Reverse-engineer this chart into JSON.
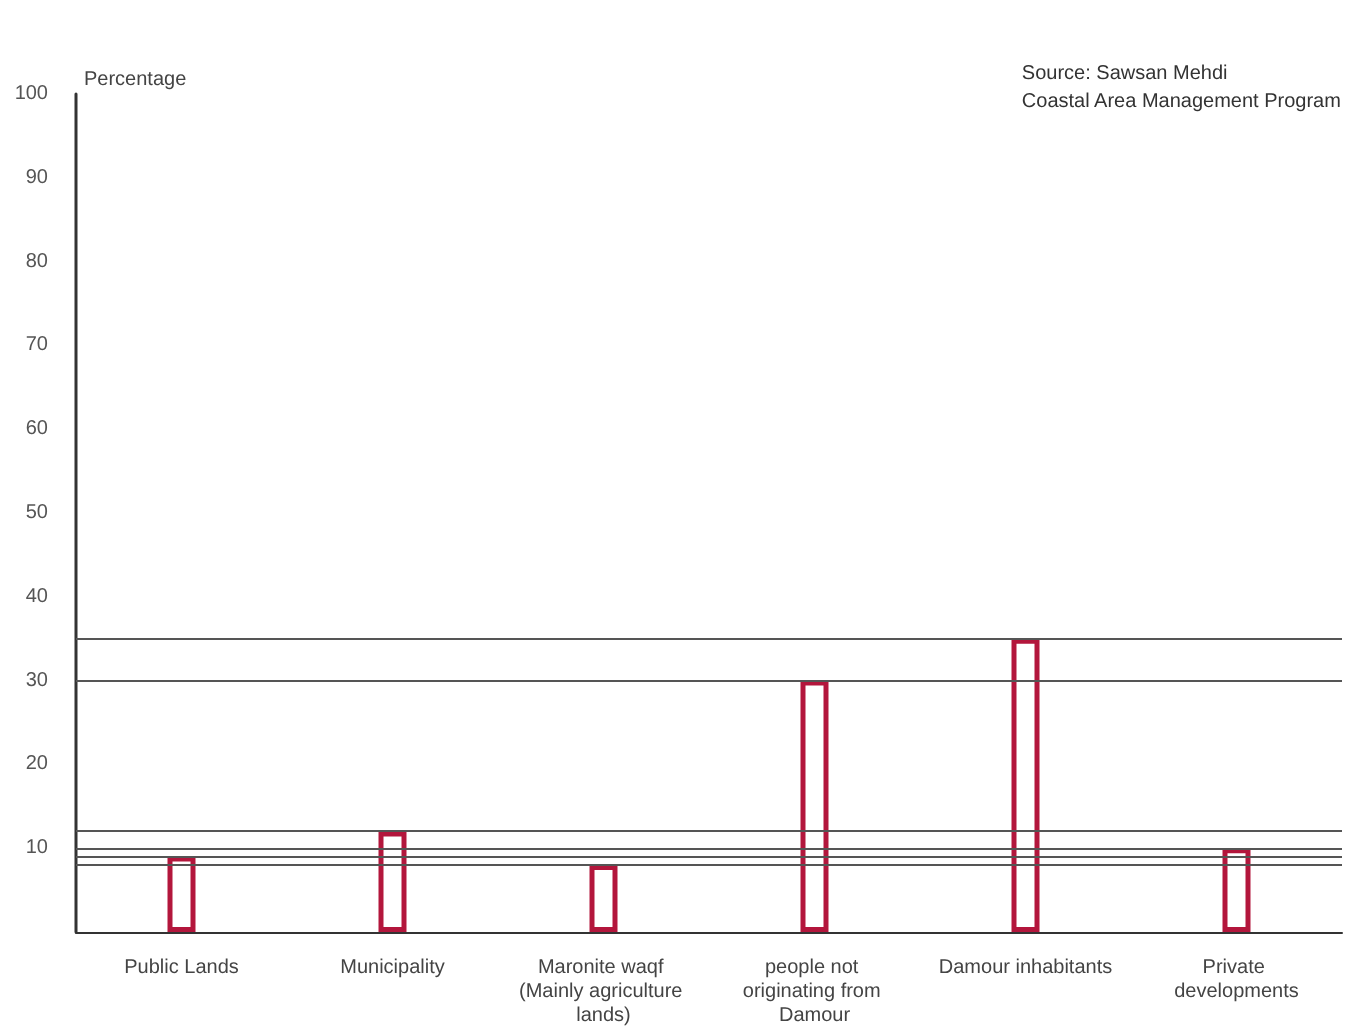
{
  "chart_data": {
    "type": "bar",
    "ylabel": "Percentage",
    "annotations": [
      "Source: Sawsan Mehdi\nCoastal Area Management Program"
    ],
    "categories": [
      "Public Lands",
      "Municipality",
      "Maronite waqf (Mainly agriculture lands)",
      "people not originating from Damour",
      "Damour inhabitants",
      "Private developments"
    ],
    "values": [
      9,
      12,
      8,
      30,
      35,
      10
    ],
    "color": "#b3163c",
    "ylim": [
      0,
      100
    ],
    "yticks": [
      10,
      20,
      30,
      40,
      50,
      60,
      70,
      80,
      90,
      100
    ],
    "ref_lines": [
      {
        "axis": "y",
        "value": 9,
        "color": "#555555"
      },
      {
        "axis": "y",
        "value": 12,
        "color": "#555555"
      },
      {
        "axis": "y",
        "value": 8,
        "color": "#555555"
      },
      {
        "axis": "y",
        "value": 30,
        "color": "#555555"
      },
      {
        "axis": "y",
        "value": 35,
        "color": "#555555"
      },
      {
        "axis": "y",
        "value": 10,
        "color": "#555555"
      }
    ],
    "grid": false
  }
}
